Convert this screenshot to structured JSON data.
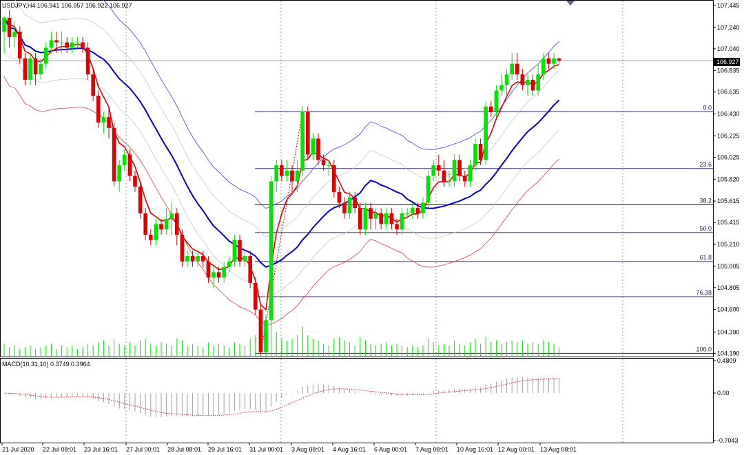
{
  "header": {
    "main": "USDJPY,H4  106.941 106.957 106.922 106.927",
    "macd": "MACD(10,31,10) 0.3749 0.3964"
  },
  "colors": {
    "bull": "#00e400",
    "bear": "#e00000",
    "ma_fast": "#e00000",
    "ma_slow": "#0000cc",
    "band_upper": "#4040ff",
    "band_lower": "#e04040",
    "envelope": "#c8c8c8",
    "fib_line": "#2a2a6a",
    "grid": "#9a9a9a",
    "macd_hist": "#a0a0a0",
    "macd_signal": "#e00000",
    "price_tag_bg": "#000000"
  },
  "chart_data": {
    "type": "candlestick",
    "symbol": "USDJPY",
    "timeframe": "H4",
    "current_price": "106.927",
    "y_ticks": [
      "107.445",
      "107.240",
      "107.040",
      "106.835",
      "106.635",
      "106.430",
      "106.225",
      "106.025",
      "105.820",
      "105.615",
      "105.415",
      "105.210",
      "105.005",
      "104.805",
      "104.600",
      "104.390",
      "104.190"
    ],
    "y_range": [
      104.16,
      107.49
    ],
    "x_ticks": [
      "21 Jul 2020",
      "22 Jul 08:01",
      "23 Jul 16:01",
      "27 Jul 00:01",
      "28 Jul 08:01",
      "29 Jul 16:01",
      "31 Jul 00:01",
      "3 Aug 08:01",
      "4 Aug 16:01",
      "6 Aug 00:01",
      "7 Aug 08:01",
      "10 Aug 16:01",
      "12 Aug 00:01",
      "13 Aug 08:01"
    ],
    "fibonacci": [
      {
        "level": "0.0",
        "price": 106.45
      },
      {
        "level": "23.6",
        "price": 105.92
      },
      {
        "level": "38.2",
        "price": 105.58
      },
      {
        "level": "50.0",
        "price": 105.32
      },
      {
        "level": "61.8",
        "price": 105.05
      },
      {
        "level": "76.38",
        "price": 104.72
      },
      {
        "level": "100.0",
        "price": 104.19
      }
    ],
    "candles": [
      [
        107.2,
        107.33,
        107.0,
        107.35
      ],
      [
        107.33,
        107.15,
        107.05,
        107.4
      ],
      [
        107.15,
        107.2,
        107.05,
        107.3
      ],
      [
        107.2,
        106.95,
        106.9,
        107.25
      ],
      [
        106.95,
        106.75,
        106.7,
        107.0
      ],
      [
        106.75,
        106.95,
        106.7,
        107.0
      ],
      [
        106.95,
        106.8,
        106.7,
        107.0
      ],
      [
        106.8,
        106.9,
        106.75,
        106.95
      ],
      [
        106.9,
        107.05,
        106.85,
        107.1
      ],
      [
        107.05,
        107.12,
        107.0,
        107.2
      ],
      [
        107.12,
        107.1,
        107.0,
        107.2
      ],
      [
        107.1,
        107.1,
        107.0,
        107.2
      ],
      [
        107.1,
        107.05,
        107.0,
        107.15
      ],
      [
        107.05,
        107.1,
        107.0,
        107.15
      ],
      [
        107.1,
        107.1,
        107.05,
        107.15
      ],
      [
        107.1,
        107.05,
        107.0,
        107.15
      ],
      [
        107.05,
        106.8,
        106.75,
        107.1
      ],
      [
        106.8,
        106.6,
        106.55,
        106.85
      ],
      [
        106.6,
        106.35,
        106.3,
        106.65
      ],
      [
        106.35,
        106.4,
        106.25,
        106.45
      ],
      [
        106.4,
        106.3,
        106.2,
        106.5
      ],
      [
        106.3,
        105.8,
        105.75,
        106.35
      ],
      [
        105.8,
        105.95,
        105.7,
        106.0
      ],
      [
        105.95,
        106.05,
        105.9,
        106.1
      ],
      [
        106.05,
        105.85,
        105.8,
        106.1
      ],
      [
        105.85,
        105.75,
        105.7,
        105.9
      ],
      [
        105.75,
        105.5,
        105.45,
        105.8
      ],
      [
        105.5,
        105.3,
        105.25,
        105.55
      ],
      [
        105.3,
        105.25,
        105.2,
        105.35
      ],
      [
        105.25,
        105.4,
        105.2,
        105.45
      ],
      [
        105.4,
        105.35,
        105.3,
        105.45
      ],
      [
        105.35,
        105.45,
        105.3,
        105.55
      ],
      [
        105.45,
        105.5,
        105.3,
        105.6
      ],
      [
        105.5,
        105.3,
        105.2,
        105.55
      ],
      [
        105.3,
        105.05,
        105.0,
        105.35
      ],
      [
        105.05,
        105.1,
        105.0,
        105.15
      ],
      [
        105.1,
        105.05,
        105.0,
        105.15
      ],
      [
        105.05,
        105.1,
        105.0,
        105.15
      ],
      [
        105.1,
        105.05,
        105.0,
        105.15
      ],
      [
        105.05,
        104.9,
        104.85,
        105.1
      ],
      [
        104.9,
        104.95,
        104.8,
        105.0
      ],
      [
        104.95,
        104.9,
        104.85,
        105.0
      ],
      [
        104.9,
        105.0,
        104.85,
        105.05
      ],
      [
        105.0,
        105.05,
        104.95,
        105.1
      ],
      [
        105.05,
        105.25,
        105.0,
        105.3
      ],
      [
        105.25,
        105.05,
        105.0,
        105.3
      ],
      [
        105.05,
        105.1,
        105.0,
        105.15
      ],
      [
        105.1,
        104.85,
        104.8,
        105.15
      ],
      [
        104.85,
        104.6,
        104.55,
        104.9
      ],
      [
        104.6,
        104.2,
        104.18,
        104.65
      ],
      [
        104.2,
        104.5,
        104.15,
        104.55
      ],
      [
        104.5,
        105.8,
        104.45,
        105.85
      ],
      [
        105.8,
        105.95,
        105.7,
        106.0
      ],
      [
        105.95,
        105.85,
        105.8,
        106.0
      ],
      [
        105.85,
        105.9,
        105.8,
        106.0
      ],
      [
        105.9,
        105.8,
        105.7,
        105.95
      ],
      [
        105.8,
        105.9,
        105.7,
        106.0
      ],
      [
        105.9,
        106.45,
        105.85,
        106.5
      ],
      [
        106.45,
        106.05,
        106.0,
        106.5
      ],
      [
        106.05,
        106.2,
        106.0,
        106.25
      ],
      [
        106.2,
        106.0,
        105.95,
        106.25
      ],
      [
        106.0,
        105.95,
        105.9,
        106.05
      ],
      [
        105.95,
        105.95,
        105.85,
        106.0
      ],
      [
        105.95,
        105.7,
        105.65,
        106.0
      ],
      [
        105.7,
        105.6,
        105.55,
        105.75
      ],
      [
        105.6,
        105.5,
        105.45,
        105.65
      ],
      [
        105.5,
        105.65,
        105.45,
        105.7
      ],
      [
        105.65,
        105.55,
        105.5,
        105.7
      ],
      [
        105.55,
        105.35,
        105.3,
        105.6
      ],
      [
        105.35,
        105.55,
        105.3,
        105.6
      ],
      [
        105.55,
        105.45,
        105.35,
        105.6
      ],
      [
        105.45,
        105.5,
        105.35,
        105.55
      ],
      [
        105.5,
        105.4,
        105.35,
        105.55
      ],
      [
        105.4,
        105.5,
        105.35,
        105.55
      ],
      [
        105.5,
        105.4,
        105.35,
        105.55
      ],
      [
        105.4,
        105.35,
        105.3,
        105.45
      ],
      [
        105.35,
        105.5,
        105.3,
        105.55
      ],
      [
        105.5,
        105.5,
        105.45,
        105.55
      ],
      [
        105.5,
        105.55,
        105.45,
        105.6
      ],
      [
        105.55,
        105.5,
        105.45,
        105.6
      ],
      [
        105.5,
        105.6,
        105.45,
        105.65
      ],
      [
        105.6,
        105.85,
        105.55,
        105.9
      ],
      [
        105.85,
        105.95,
        105.8,
        106.0
      ],
      [
        105.95,
        105.9,
        105.85,
        106.05
      ],
      [
        105.9,
        105.8,
        105.75,
        106.0
      ],
      [
        105.8,
        105.8,
        105.75,
        105.9
      ],
      [
        105.8,
        106.0,
        105.75,
        106.05
      ],
      [
        106.0,
        105.85,
        105.8,
        106.05
      ],
      [
        105.85,
        105.8,
        105.75,
        105.9
      ],
      [
        105.8,
        105.95,
        105.75,
        106.0
      ],
      [
        105.95,
        106.15,
        105.9,
        106.2
      ],
      [
        106.15,
        106.0,
        105.95,
        106.2
      ],
      [
        106.0,
        106.5,
        105.95,
        106.55
      ],
      [
        106.5,
        106.45,
        106.4,
        106.55
      ],
      [
        106.45,
        106.65,
        106.4,
        106.7
      ],
      [
        106.65,
        106.7,
        106.6,
        106.8
      ],
      [
        106.7,
        106.8,
        106.6,
        106.85
      ],
      [
        106.8,
        106.9,
        106.75,
        107.0
      ],
      [
        106.9,
        106.8,
        106.75,
        107.0
      ],
      [
        106.8,
        106.7,
        106.65,
        106.85
      ],
      [
        106.7,
        106.75,
        106.6,
        106.8
      ],
      [
        106.75,
        106.65,
        106.6,
        106.8
      ],
      [
        106.65,
        106.8,
        106.6,
        106.9
      ],
      [
        106.8,
        106.95,
        106.75,
        107.0
      ],
      [
        106.95,
        106.9,
        106.85,
        107.0
      ],
      [
        106.9,
        106.95,
        106.85,
        107.0
      ],
      [
        106.95,
        106.93,
        106.9,
        106.96
      ]
    ],
    "volumes": [
      0.35,
      0.25,
      0.3,
      0.2,
      0.25,
      0.3,
      0.2,
      0.25,
      0.3,
      0.35,
      0.2,
      0.3,
      0.25,
      0.3,
      0.2,
      0.25,
      0.35,
      0.3,
      0.4,
      0.45,
      0.3,
      0.5,
      0.35,
      0.3,
      0.4,
      0.3,
      0.45,
      0.5,
      0.35,
      0.3,
      0.4,
      0.35,
      0.3,
      0.5,
      0.45,
      0.3,
      0.35,
      0.3,
      0.25,
      0.4,
      0.3,
      0.35,
      0.3,
      0.25,
      0.4,
      0.35,
      0.3,
      0.5,
      0.6,
      0.9,
      0.7,
      1.0,
      0.7,
      0.5,
      0.45,
      0.5,
      0.6,
      0.85,
      0.6,
      0.5,
      0.45,
      0.35,
      0.3,
      0.5,
      0.55,
      0.45,
      0.4,
      0.3,
      0.55,
      0.45,
      0.35,
      0.3,
      0.35,
      0.4,
      0.3,
      0.35,
      0.3,
      0.25,
      0.3,
      0.25,
      0.3,
      0.5,
      0.4,
      0.3,
      0.35,
      0.3,
      0.45,
      0.35,
      0.3,
      0.4,
      0.5,
      0.35,
      0.55,
      0.4,
      0.45,
      0.35,
      0.4,
      0.45,
      0.4,
      0.45,
      0.35,
      0.4,
      0.35,
      0.45,
      0.4,
      0.35,
      0.25
    ],
    "macd_y_ticks": [
      "0.4809",
      "0.00",
      "-0.7043"
    ],
    "macd_range": [
      -0.7043,
      0.4809
    ]
  }
}
